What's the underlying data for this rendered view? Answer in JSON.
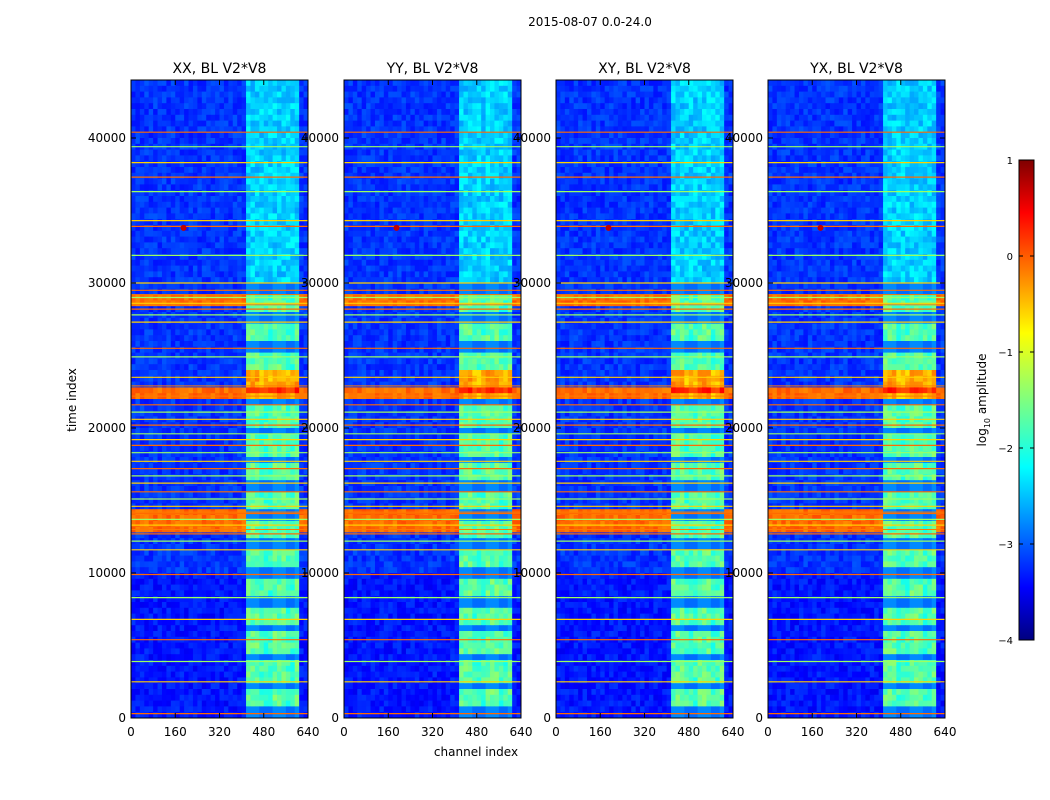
{
  "chart_data": {
    "type": "heatmap",
    "suptitle": "2015-08-07 0.0-24.0",
    "xlabel": "channel index",
    "ylabel": "time index",
    "xlim": [
      0,
      640
    ],
    "ylim": [
      0,
      44000
    ],
    "xticks": [
      "0",
      "160",
      "320",
      "480",
      "640"
    ],
    "yticks": [
      "0",
      "10000",
      "20000",
      "30000",
      "40000"
    ],
    "panels": [
      {
        "title": "XX, BL V2*V8"
      },
      {
        "title": "YY, BL V2*V8"
      },
      {
        "title": "XY, BL V2*V8"
      },
      {
        "title": "YX, BL V2*V8"
      }
    ],
    "colorbar": {
      "label": "log10 amplitude",
      "label_main": "log",
      "label_sub": "10",
      "label_rest": " amplitude",
      "range": [
        -4,
        1
      ],
      "ticks": [
        "1",
        "0",
        "−1",
        "−2",
        "−3",
        "−4"
      ],
      "colormap": "jet"
    },
    "features": {
      "rfi_channel_band": [
        410,
        600
      ],
      "bright_time_blocks": [
        [
          13000,
          14200
        ],
        [
          28500,
          29200
        ],
        [
          22200,
          22900
        ]
      ],
      "strong_spot": {
        "channel": 190,
        "time": 33800
      },
      "low_activity_region": [
        0,
        10000
      ]
    }
  }
}
